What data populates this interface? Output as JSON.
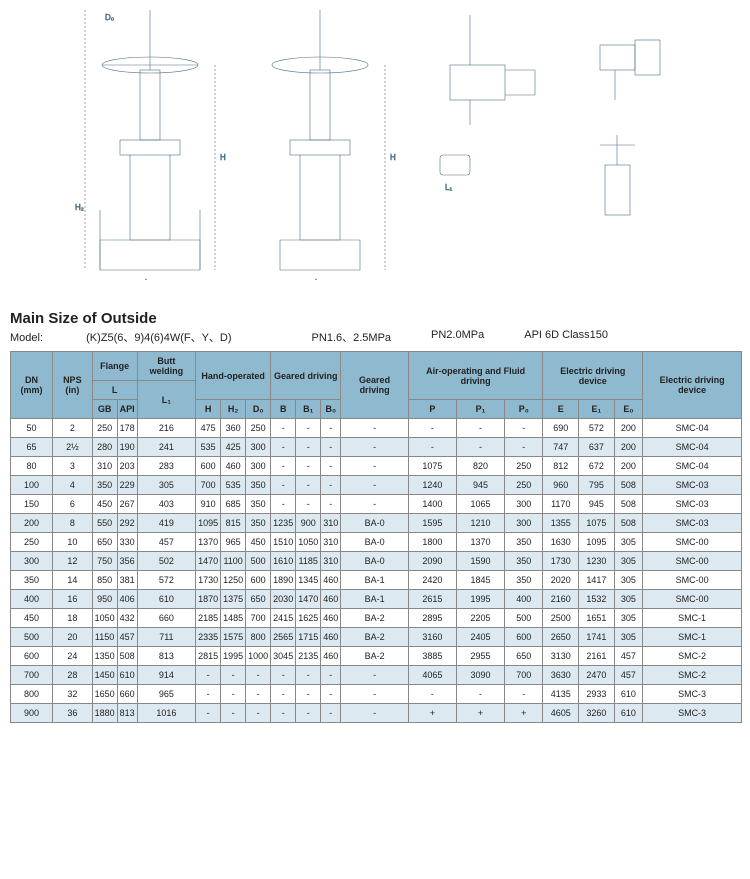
{
  "title": "Main Size of Outside",
  "model_label": "Model:",
  "model_value": "(K)Z5(6、9)4(6)4W(F、Y、D)",
  "pressure1": "PN1.6、2.5MPa",
  "pressure2": "PN2.0MPa",
  "standard": "API 6D Class150",
  "head": {
    "dn": "DN\n(mm)",
    "nps": "NPS\n(in)",
    "flange": "Flange",
    "L": "L",
    "gb": "GB",
    "api": "API",
    "butt": "Butt\nwelding",
    "l1": "L₁",
    "hand": "Hand-operated",
    "h": "H",
    "h2": "H₂",
    "d0": "D₀",
    "geared": "Geared driving",
    "b": "B",
    "b1": "B₁",
    "b0": "B₀",
    "geared2": "Geared\ndriving",
    "air": "Air-operating and\nFluid driving",
    "p": "P",
    "p1": "P₁",
    "p0": "P₀",
    "elec": "Electric\ndriving device",
    "e": "E",
    "e1": "E₁",
    "e0": "E₀",
    "elecd": "Electric\ndriving\ndevice"
  },
  "rows": [
    [
      "50",
      "2",
      "250",
      "178",
      "216",
      "475",
      "360",
      "250",
      "-",
      "-",
      "-",
      "-",
      "-",
      "-",
      "-",
      "690",
      "572",
      "200",
      "SMC-04"
    ],
    [
      "65",
      "2½",
      "280",
      "190",
      "241",
      "535",
      "425",
      "300",
      "-",
      "-",
      "-",
      "-",
      "-",
      "-",
      "-",
      "747",
      "637",
      "200",
      "SMC-04"
    ],
    [
      "80",
      "3",
      "310",
      "203",
      "283",
      "600",
      "460",
      "300",
      "-",
      "-",
      "-",
      "-",
      "1075",
      "820",
      "250",
      "812",
      "672",
      "200",
      "SMC-04"
    ],
    [
      "100",
      "4",
      "350",
      "229",
      "305",
      "700",
      "535",
      "350",
      "-",
      "-",
      "-",
      "-",
      "1240",
      "945",
      "250",
      "960",
      "795",
      "508",
      "SMC-03"
    ],
    [
      "150",
      "6",
      "450",
      "267",
      "403",
      "910",
      "685",
      "350",
      "-",
      "-",
      "-",
      "-",
      "1400",
      "1065",
      "300",
      "1170",
      "945",
      "508",
      "SMC-03"
    ],
    [
      "200",
      "8",
      "550",
      "292",
      "419",
      "1095",
      "815",
      "350",
      "1235",
      "900",
      "310",
      "BA-0",
      "1595",
      "1210",
      "300",
      "1355",
      "1075",
      "508",
      "SMC-03"
    ],
    [
      "250",
      "10",
      "650",
      "330",
      "457",
      "1370",
      "965",
      "450",
      "1510",
      "1050",
      "310",
      "BA-0",
      "1800",
      "1370",
      "350",
      "1630",
      "1095",
      "305",
      "SMC-00"
    ],
    [
      "300",
      "12",
      "750",
      "356",
      "502",
      "1470",
      "1100",
      "500",
      "1610",
      "1185",
      "310",
      "BA-0",
      "2090",
      "1590",
      "350",
      "1730",
      "1230",
      "305",
      "SMC-00"
    ],
    [
      "350",
      "14",
      "850",
      "381",
      "572",
      "1730",
      "1250",
      "600",
      "1890",
      "1345",
      "460",
      "BA-1",
      "2420",
      "1845",
      "350",
      "2020",
      "1417",
      "305",
      "SMC-00"
    ],
    [
      "400",
      "16",
      "950",
      "406",
      "610",
      "1870",
      "1375",
      "650",
      "2030",
      "1470",
      "460",
      "BA-1",
      "2615",
      "1995",
      "400",
      "2160",
      "1532",
      "305",
      "SMC-00"
    ],
    [
      "450",
      "18",
      "1050",
      "432",
      "660",
      "2185",
      "1485",
      "700",
      "2415",
      "1625",
      "460",
      "BA-2",
      "2895",
      "2205",
      "500",
      "2500",
      "1651",
      "305",
      "SMC-1"
    ],
    [
      "500",
      "20",
      "1150",
      "457",
      "711",
      "2335",
      "1575",
      "800",
      "2565",
      "1715",
      "460",
      "BA-2",
      "3160",
      "2405",
      "600",
      "2650",
      "1741",
      "305",
      "SMC-1"
    ],
    [
      "600",
      "24",
      "1350",
      "508",
      "813",
      "2815",
      "1995",
      "1000",
      "3045",
      "2135",
      "460",
      "BA-2",
      "3885",
      "2955",
      "650",
      "3130",
      "2161",
      "457",
      "SMC-2"
    ],
    [
      "700",
      "28",
      "1450",
      "610",
      "914",
      "-",
      "-",
      "-",
      "-",
      "-",
      "-",
      "-",
      "4065",
      "3090",
      "700",
      "3630",
      "2470",
      "457",
      "SMC-2"
    ],
    [
      "800",
      "32",
      "1650",
      "660",
      "965",
      "-",
      "-",
      "-",
      "-",
      "-",
      "-",
      "-",
      "-",
      "-",
      "-",
      "4135",
      "2933",
      "610",
      "SMC-3"
    ],
    [
      "900",
      "36",
      "1880",
      "813",
      "1016",
      "-",
      "-",
      "-",
      "-",
      "-",
      "-",
      "-",
      "+",
      "+",
      "+",
      "4605",
      "3260",
      "610",
      "SMC-3"
    ]
  ]
}
